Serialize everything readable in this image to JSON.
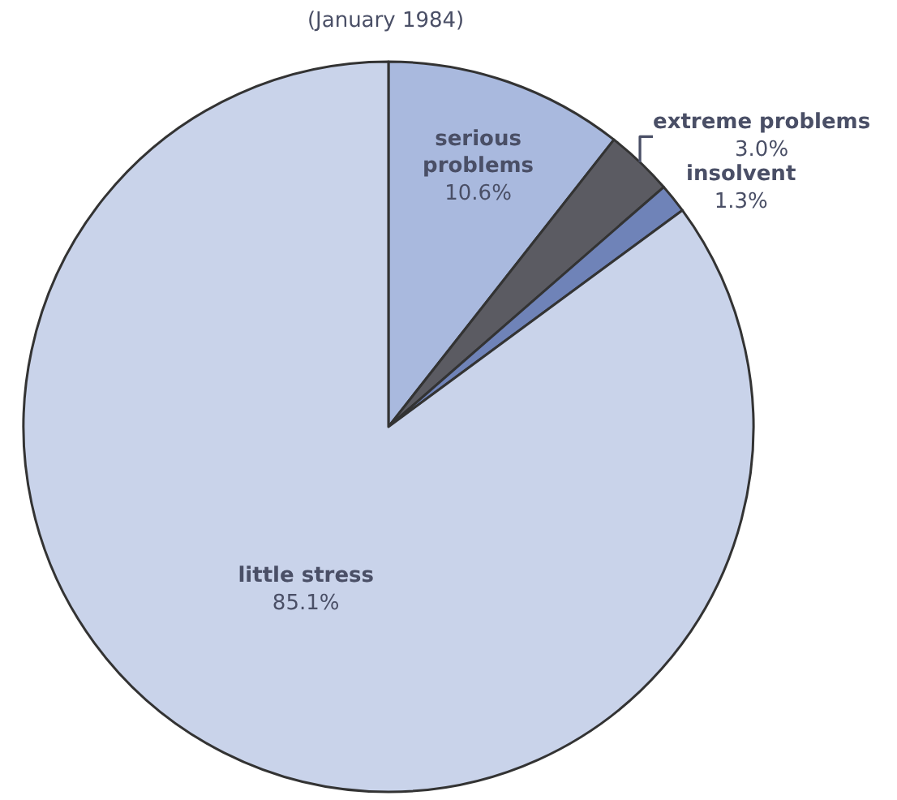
{
  "chart_data": {
    "type": "pie",
    "title": "(January 1984)",
    "categories": [
      "serious problems",
      "extreme problems",
      "insolvent",
      "little stress"
    ],
    "values": [
      10.6,
      3.0,
      1.3,
      85.1
    ],
    "value_labels": [
      "10.6%",
      "3.0%",
      "1.3%",
      "85.1%"
    ],
    "colors": [
      "#a9b9de",
      "#5b5b62",
      "#6f83b8",
      "#c9d3ea"
    ],
    "legend": false
  }
}
